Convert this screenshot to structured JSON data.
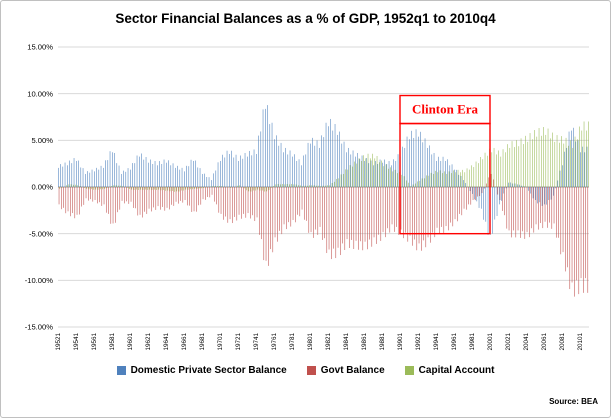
{
  "source_note": "Source: BEA",
  "chart_data": {
    "type": "bar",
    "title": "Sector Financial Balances as a % of GDP, 1952q1 to 2010q4",
    "x_start": "1952q1",
    "x_end": "2010q4",
    "resolution_note": "values are annual anchors estimated from quarterly bars",
    "ylim": [
      -15,
      15
    ],
    "ytick_step": 5,
    "grid": true,
    "legend_position": "bottom",
    "ytick_labels": [
      "15.00%",
      "10.00%",
      "5.00%",
      "0.00%",
      "-5.00%",
      "-10.00%",
      "-15.00%"
    ],
    "xtick_labels": [
      "19521",
      "19541",
      "19561",
      "19581",
      "19601",
      "19621",
      "19641",
      "19661",
      "19681",
      "19701",
      "19721",
      "19741",
      "19761",
      "19781",
      "19801",
      "19821",
      "19841",
      "19861",
      "19881",
      "19901",
      "19921",
      "19941",
      "19961",
      "19981",
      "20001",
      "20021",
      "20041",
      "20061",
      "20081",
      "20101"
    ],
    "years": [
      1952,
      1953,
      1954,
      1955,
      1956,
      1957,
      1958,
      1959,
      1960,
      1961,
      1962,
      1963,
      1964,
      1965,
      1966,
      1967,
      1968,
      1969,
      1970,
      1971,
      1972,
      1973,
      1974,
      1975,
      1976,
      1977,
      1978,
      1979,
      1980,
      1981,
      1982,
      1983,
      1984,
      1985,
      1986,
      1987,
      1988,
      1989,
      1990,
      1991,
      1992,
      1993,
      1994,
      1995,
      1996,
      1997,
      1998,
      1999,
      2000,
      2001,
      2002,
      2003,
      2004,
      2005,
      2006,
      2007,
      2008,
      2009,
      2010
    ],
    "series": [
      {
        "name": "Domestic Private Sector Balance",
        "color": "#4F81BD",
        "values": [
          2.2,
          2.5,
          3.0,
          1.5,
          1.8,
          2.2,
          4.0,
          1.5,
          2.0,
          3.5,
          2.8,
          2.5,
          2.8,
          2.2,
          1.8,
          3.0,
          1.5,
          0.8,
          3.0,
          3.8,
          3.0,
          3.5,
          3.8,
          9.0,
          5.5,
          4.0,
          3.5,
          2.5,
          5.0,
          4.5,
          7.0,
          6.0,
          4.0,
          3.5,
          3.0,
          2.5,
          2.8,
          2.5,
          3.5,
          5.5,
          5.8,
          4.5,
          3.0,
          3.0,
          2.0,
          0.8,
          -0.8,
          -2.5,
          -5.5,
          -2.0,
          0.5,
          0.3,
          0.0,
          -1.5,
          -2.0,
          -1.0,
          2.5,
          6.5,
          4.0
        ]
      },
      {
        "name": "Govt Balance",
        "color": "#C0504D",
        "values": [
          -2.0,
          -2.8,
          -3.2,
          -1.3,
          -1.5,
          -2.0,
          -4.2,
          -1.6,
          -1.7,
          -3.2,
          -2.5,
          -2.2,
          -2.4,
          -1.7,
          -1.5,
          -2.8,
          -1.4,
          -0.9,
          -3.1,
          -3.7,
          -3.2,
          -3.0,
          -3.5,
          -8.5,
          -5.8,
          -4.3,
          -3.8,
          -2.6,
          -5.2,
          -4.6,
          -7.2,
          -7.0,
          -6.0,
          -6.2,
          -6.3,
          -5.8,
          -5.2,
          -4.3,
          -4.9,
          -5.6,
          -6.5,
          -5.8,
          -4.7,
          -4.5,
          -3.7,
          -2.5,
          -1.5,
          -0.7,
          1.5,
          -1.5,
          -5.0,
          -5.0,
          -5.2,
          -4.3,
          -4.0,
          -4.2,
          -7.5,
          -11.0,
          -10.5
        ]
      },
      {
        "name": "Capital Account",
        "color": "#9BBB59",
        "values": [
          -0.2,
          0.3,
          0.2,
          -0.2,
          -0.3,
          -0.2,
          0.2,
          0.1,
          -0.3,
          -0.3,
          -0.3,
          -0.3,
          -0.4,
          -0.5,
          -0.3,
          -0.2,
          -0.1,
          0.1,
          0.1,
          -0.1,
          0.2,
          -0.5,
          -0.3,
          -0.5,
          0.3,
          0.3,
          0.3,
          0.1,
          0.2,
          0.1,
          0.2,
          1.0,
          2.0,
          2.7,
          3.3,
          3.3,
          2.4,
          1.8,
          1.4,
          0.1,
          0.7,
          1.3,
          1.7,
          1.5,
          1.7,
          1.7,
          2.3,
          3.2,
          4.0,
          3.5,
          4.5,
          4.7,
          5.2,
          5.8,
          6.0,
          5.2,
          5.0,
          4.5,
          6.5
        ]
      }
    ],
    "annotation": {
      "label": "Clinton Era",
      "x_from_year": 1990,
      "x_to_year": 2000,
      "label_top_pct": 9.8,
      "box_top_pct": 6.8,
      "box_bottom_pct": -5.0,
      "color": "#FF0000"
    }
  }
}
